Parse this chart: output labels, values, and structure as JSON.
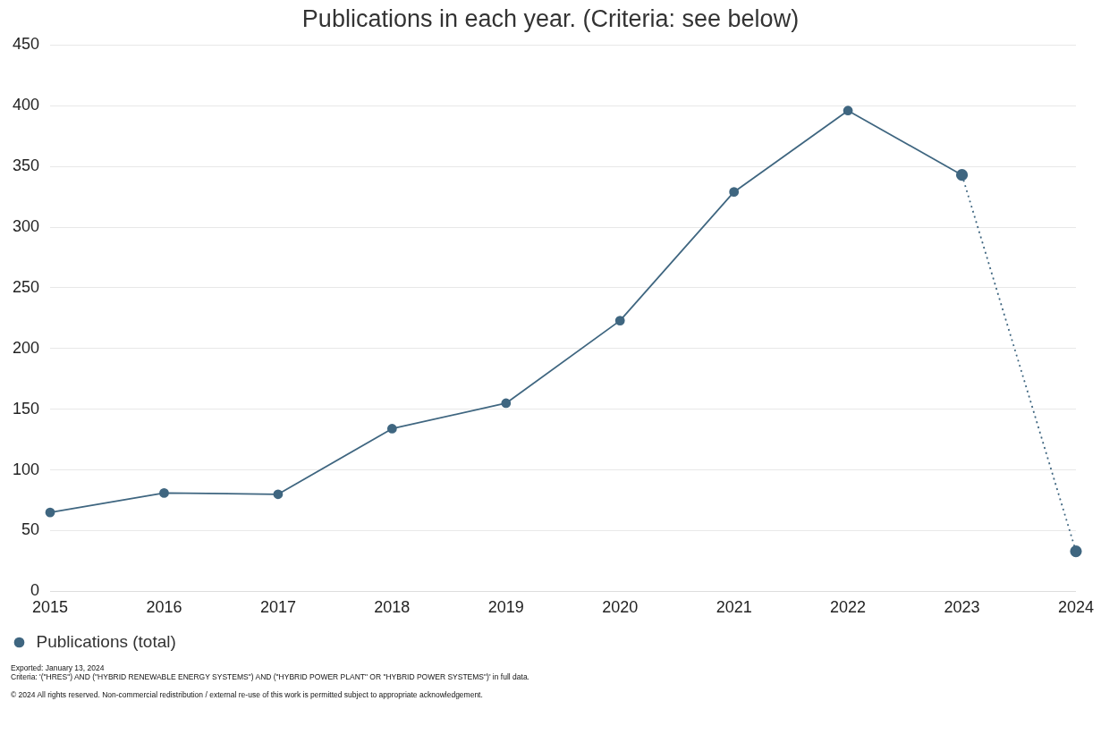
{
  "chart_data": {
    "type": "line",
    "title": "Publications in each year. (Criteria: see below)",
    "categories": [
      "2015",
      "2016",
      "2017",
      "2018",
      "2019",
      "2020",
      "2021",
      "2022",
      "2023",
      "2024"
    ],
    "series": [
      {
        "name": "Publications (total)",
        "color": "#3f6680",
        "values": [
          65,
          81,
          80,
          134,
          155,
          223,
          329,
          396,
          343,
          null
        ]
      },
      {
        "color": "#3f6680",
        "line_style": "dotted",
        "values": [
          null,
          null,
          null,
          null,
          null,
          null,
          null,
          null,
          343,
          33
        ]
      }
    ],
    "ylim": [
      0,
      450
    ],
    "yticks": [
      0,
      50,
      100,
      150,
      200,
      250,
      300,
      350,
      400,
      450
    ],
    "grid": "y",
    "legend": "bottom left",
    "marker": "circle",
    "line_style": "solid",
    "annotations": [
      "Exported: January 13, 2024",
      "Criteria: '(\"HRES\") AND (\"HYBRID RENEWABLE ENERGY SYSTEMS\") AND (\"HYBRID POWER PLANT\" OR \"HYBRID POWER SYSTEMS\")' in full data.",
      "© 2024 All rights reserved. Non-commercial redistribution / external re-use of this work is permitted subject to appropriate acknowledgement."
    ]
  }
}
